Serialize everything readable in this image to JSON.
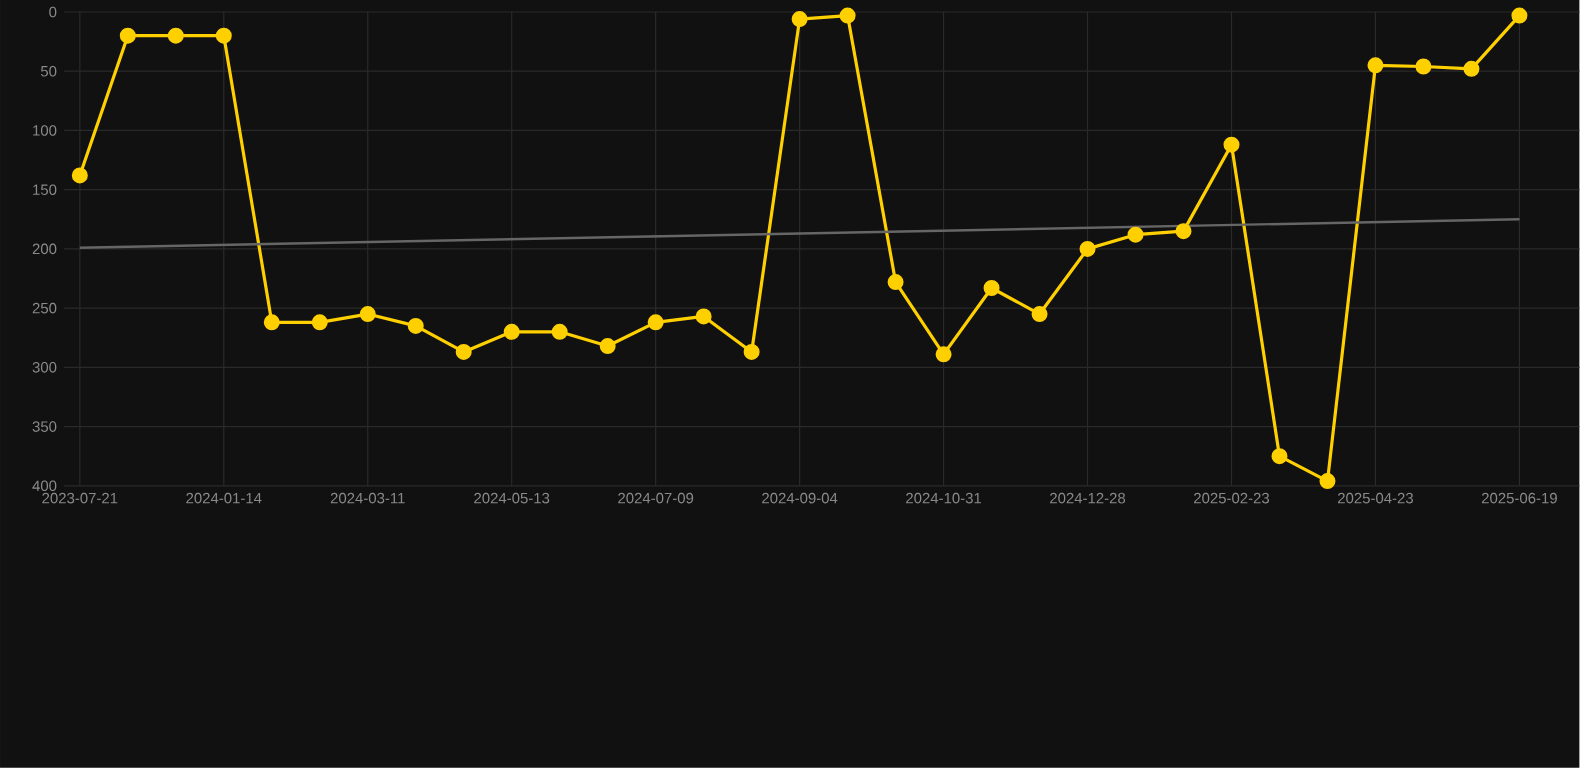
{
  "chart_data": {
    "type": "line",
    "categories": [
      "2023-07-21",
      null,
      null,
      "2024-01-14",
      null,
      null,
      "2024-03-11",
      null,
      null,
      "2024-05-13",
      null,
      null,
      "2024-07-09",
      null,
      null,
      "2024-09-04",
      null,
      null,
      "2024-10-31",
      null,
      null,
      "2024-12-28",
      null,
      null,
      "2025-02-23",
      null,
      null,
      "2025-04-23",
      null,
      null,
      "2025-06-19"
    ],
    "series": [
      {
        "color": "#ffd000",
        "values": [
          138,
          20,
          20,
          20,
          262,
          262,
          255,
          265,
          287,
          270,
          270,
          282,
          262,
          257,
          287,
          6,
          3,
          228,
          289,
          233,
          255,
          200,
          188,
          185,
          112,
          375,
          396,
          45,
          46,
          48,
          3
        ]
      },
      {
        "type": "line",
        "color": "#666666",
        "marker": "none",
        "values": [
          199,
          null,
          null,
          null,
          null,
          null,
          null,
          null,
          null,
          null,
          null,
          null,
          null,
          null,
          null,
          null,
          null,
          null,
          null,
          null,
          null,
          null,
          null,
          null,
          null,
          null,
          null,
          null,
          null,
          null,
          175
        ]
      }
    ],
    "ylim": [
      400,
      0
    ],
    "yticks": [
      0,
      50,
      100,
      150,
      200,
      250,
      300,
      350,
      400
    ],
    "grid": true,
    "marker": "circle",
    "line_style": "solid"
  }
}
